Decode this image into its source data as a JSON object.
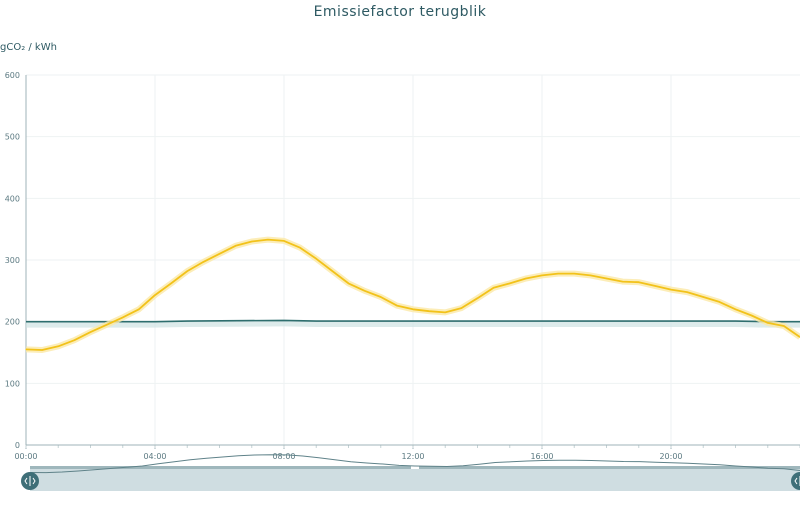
{
  "chart_data": {
    "type": "line",
    "title": "Emissiefactor terugblik",
    "ylabel": "gCO₂ / kWh",
    "xlabel": "",
    "ylim": [
      0,
      600
    ],
    "yticks": [
      0,
      100,
      200,
      300,
      400,
      500,
      600
    ],
    "xlim": [
      0,
      24
    ],
    "xticks": [
      "00:00",
      "04:00",
      "08:00",
      "12:00",
      "16:00",
      "20:00"
    ],
    "grid": true,
    "series": [
      {
        "color": "#f2c21a",
        "x": [
          0,
          0.5,
          1,
          1.5,
          2,
          2.5,
          3,
          3.5,
          4,
          4.5,
          5,
          5.5,
          6,
          6.5,
          7,
          7.5,
          8,
          8.5,
          9,
          9.5,
          10,
          10.5,
          11,
          11.5,
          12,
          12.5,
          13,
          13.5,
          14,
          14.5,
          15,
          15.5,
          16,
          16.5,
          17,
          17.5,
          18,
          18.5,
          19,
          19.5,
          20,
          20.5,
          21,
          21.5,
          22,
          22.5,
          23,
          23.5,
          24
        ],
        "values": [
          155,
          154,
          160,
          170,
          183,
          195,
          207,
          220,
          243,
          262,
          282,
          297,
          310,
          323,
          330,
          333,
          331,
          320,
          302,
          282,
          262,
          250,
          240,
          226,
          220,
          217,
          215,
          222,
          238,
          255,
          262,
          270,
          275,
          278,
          278,
          275,
          270,
          265,
          264,
          258,
          252,
          248,
          240,
          232,
          220,
          210,
          198,
          193,
          175
        ]
      },
      {
        "color": "#2e6e6e",
        "x": [
          0,
          4,
          5,
          8,
          9,
          12,
          16,
          20,
          22,
          23,
          24
        ],
        "values": [
          200,
          200,
          201,
          202,
          201,
          201,
          201,
          201,
          201,
          200,
          200
        ]
      }
    ],
    "navigator": {
      "range": [
        "00:00",
        "24:00"
      ]
    }
  }
}
